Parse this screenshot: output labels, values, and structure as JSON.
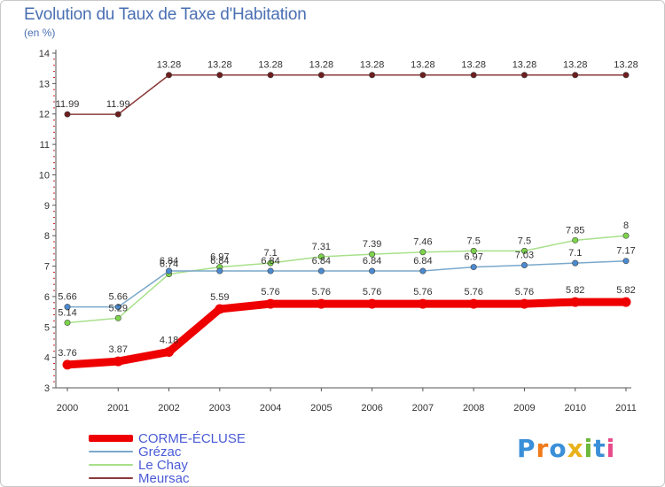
{
  "title": "Evolution du Taux de Taxe d'Habitation",
  "unit": "(en %)",
  "logo": {
    "text": "Proxiti",
    "colors": [
      "#3a8fd8",
      "#f07a1a",
      "#3a8fd8",
      "#e8b21a",
      "#6bb83a",
      "#3a8fd8",
      "#e84a8a"
    ]
  },
  "chart_data": {
    "type": "line",
    "title": "Evolution du Taux de Taxe d'Habitation",
    "ylabel": "(en %)",
    "xlabel": "",
    "ylim": [
      3,
      14
    ],
    "yticks": [
      3,
      4,
      5,
      6,
      7,
      8,
      9,
      10,
      11,
      12,
      13,
      14
    ],
    "categories": [
      "2000",
      "2001",
      "2002",
      "2003",
      "2004",
      "2005",
      "2006",
      "2007",
      "2008",
      "2009",
      "2010",
      "2011"
    ],
    "grid": false,
    "legend_position": "bottom-left",
    "series": [
      {
        "name": "Meursac",
        "color": "#8b3a3a",
        "marker": "#6e1e1e",
        "weight": "thin",
        "values": [
          11.99,
          11.99,
          13.28,
          13.28,
          13.28,
          13.28,
          13.28,
          13.28,
          13.28,
          13.28,
          13.28,
          13.28
        ],
        "labels": [
          "11.99",
          "11.99",
          "13.28",
          "13.28",
          "13.28",
          "13.28",
          "13.28",
          "13.28",
          "13.28",
          "13.28",
          "13.28",
          "13.28"
        ],
        "label_side": "above"
      },
      {
        "name": "Le Chay",
        "color": "#a8e08a",
        "marker": "#7cd44a",
        "weight": "thin",
        "values": [
          5.14,
          5.29,
          6.74,
          6.97,
          7.1,
          7.31,
          7.39,
          7.46,
          7.5,
          7.5,
          7.85,
          8.0
        ],
        "labels": [
          "5.14",
          "5.29",
          "6.74",
          "6.97",
          "7.1",
          "7.31",
          "7.39",
          "7.46",
          "7.5",
          "7.5",
          "7.85",
          "8"
        ],
        "label_side": "above"
      },
      {
        "name": "Grézac",
        "color": "#7aa8cc",
        "marker": "#4a8ad0",
        "weight": "thin",
        "values": [
          5.66,
          5.66,
          6.84,
          6.84,
          6.84,
          6.84,
          6.84,
          6.84,
          6.97,
          7.03,
          7.1,
          7.17
        ],
        "labels": [
          "5.66",
          "5.66",
          "6.84",
          "6.84",
          "6.84",
          "6.84",
          "6.84",
          "6.84",
          "6.97",
          "7.03",
          "7.1",
          "7.17"
        ],
        "label_side": "above"
      },
      {
        "name": "CORME-ÉCLUSE",
        "color": "#ee0000",
        "marker": "#ee0000",
        "weight": "thick",
        "values": [
          3.76,
          3.87,
          4.18,
          5.59,
          5.76,
          5.76,
          5.76,
          5.76,
          5.76,
          5.76,
          5.82,
          5.82
        ],
        "labels": [
          "3.76",
          "3.87",
          "4.18",
          "5.59",
          "5.76",
          "5.76",
          "5.76",
          "5.76",
          "5.76",
          "5.76",
          "5.82",
          "5.82"
        ],
        "label_side": "above"
      }
    ],
    "legend_order": [
      "CORME-ÉCLUSE",
      "Grézac",
      "Le Chay",
      "Meursac"
    ]
  }
}
